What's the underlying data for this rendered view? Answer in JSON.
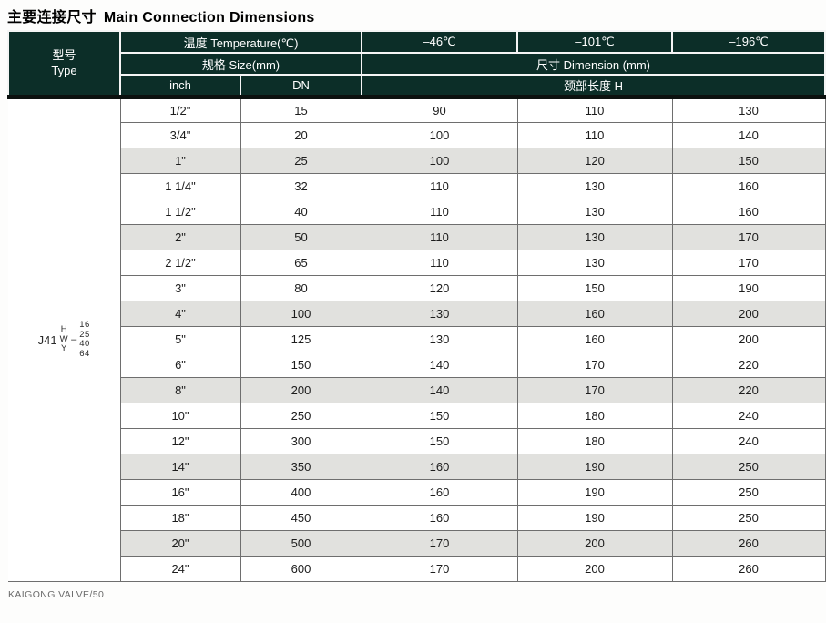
{
  "page": {
    "title_zh": "主要连接尺寸",
    "title_en": "Main Connection Dimensions",
    "footer": "KAIGONG VALVE/50"
  },
  "table": {
    "header": {
      "type_label_zh": "型号",
      "type_label_en": "Type",
      "temperature_label": "温度 Temperature(℃)",
      "size_label": "规格 Size(mm)",
      "dimension_label": "尺寸 Dimension (mm)",
      "neck_length_label": "颈部长度 H",
      "inch_label": "inch",
      "dn_label": "DN",
      "temp_columns": [
        "–46℃",
        "–101℃",
        "–196℃"
      ]
    },
    "type_designation": {
      "prefix": "J41",
      "letters": [
        "H",
        "W",
        "Y"
      ],
      "separator": "–",
      "numbers": [
        "16",
        "25",
        "40",
        "64"
      ]
    },
    "rows": [
      {
        "inch": "1/2\"",
        "dn": "15",
        "h_46": "90",
        "h_101": "110",
        "h_196": "130",
        "shaded": false
      },
      {
        "inch": "3/4\"",
        "dn": "20",
        "h_46": "100",
        "h_101": "110",
        "h_196": "140",
        "shaded": false
      },
      {
        "inch": "1\"",
        "dn": "25",
        "h_46": "100",
        "h_101": "120",
        "h_196": "150",
        "shaded": true
      },
      {
        "inch": "1 1/4\"",
        "dn": "32",
        "h_46": "110",
        "h_101": "130",
        "h_196": "160",
        "shaded": false
      },
      {
        "inch": "1 1/2\"",
        "dn": "40",
        "h_46": "110",
        "h_101": "130",
        "h_196": "160",
        "shaded": false
      },
      {
        "inch": "2\"",
        "dn": "50",
        "h_46": "110",
        "h_101": "130",
        "h_196": "170",
        "shaded": true
      },
      {
        "inch": "2 1/2\"",
        "dn": "65",
        "h_46": "110",
        "h_101": "130",
        "h_196": "170",
        "shaded": false
      },
      {
        "inch": "3\"",
        "dn": "80",
        "h_46": "120",
        "h_101": "150",
        "h_196": "190",
        "shaded": false
      },
      {
        "inch": "4\"",
        "dn": "100",
        "h_46": "130",
        "h_101": "160",
        "h_196": "200",
        "shaded": true
      },
      {
        "inch": "5\"",
        "dn": "125",
        "h_46": "130",
        "h_101": "160",
        "h_196": "200",
        "shaded": false
      },
      {
        "inch": "6\"",
        "dn": "150",
        "h_46": "140",
        "h_101": "170",
        "h_196": "220",
        "shaded": false
      },
      {
        "inch": "8\"",
        "dn": "200",
        "h_46": "140",
        "h_101": "170",
        "h_196": "220",
        "shaded": true
      },
      {
        "inch": "10\"",
        "dn": "250",
        "h_46": "150",
        "h_101": "180",
        "h_196": "240",
        "shaded": false
      },
      {
        "inch": "12\"",
        "dn": "300",
        "h_46": "150",
        "h_101": "180",
        "h_196": "240",
        "shaded": false
      },
      {
        "inch": "14\"",
        "dn": "350",
        "h_46": "160",
        "h_101": "190",
        "h_196": "250",
        "shaded": true
      },
      {
        "inch": "16\"",
        "dn": "400",
        "h_46": "160",
        "h_101": "190",
        "h_196": "250",
        "shaded": false
      },
      {
        "inch": "18\"",
        "dn": "450",
        "h_46": "160",
        "h_101": "190",
        "h_196": "250",
        "shaded": false
      },
      {
        "inch": "20\"",
        "dn": "500",
        "h_46": "170",
        "h_101": "200",
        "h_196": "260",
        "shaded": true
      },
      {
        "inch": "24\"",
        "dn": "600",
        "h_46": "170",
        "h_101": "200",
        "h_196": "260",
        "shaded": false
      }
    ]
  },
  "colors": {
    "header_bg": "#0c2e28",
    "header_text": "#ffffff",
    "header_line": "#f5f5f5",
    "strip": "#0c110f",
    "grid_line": "#6e6e6e",
    "shaded_row": "#e1e1de",
    "body_text": "#1c1c1c",
    "footer_text": "#6a6a6a"
  }
}
